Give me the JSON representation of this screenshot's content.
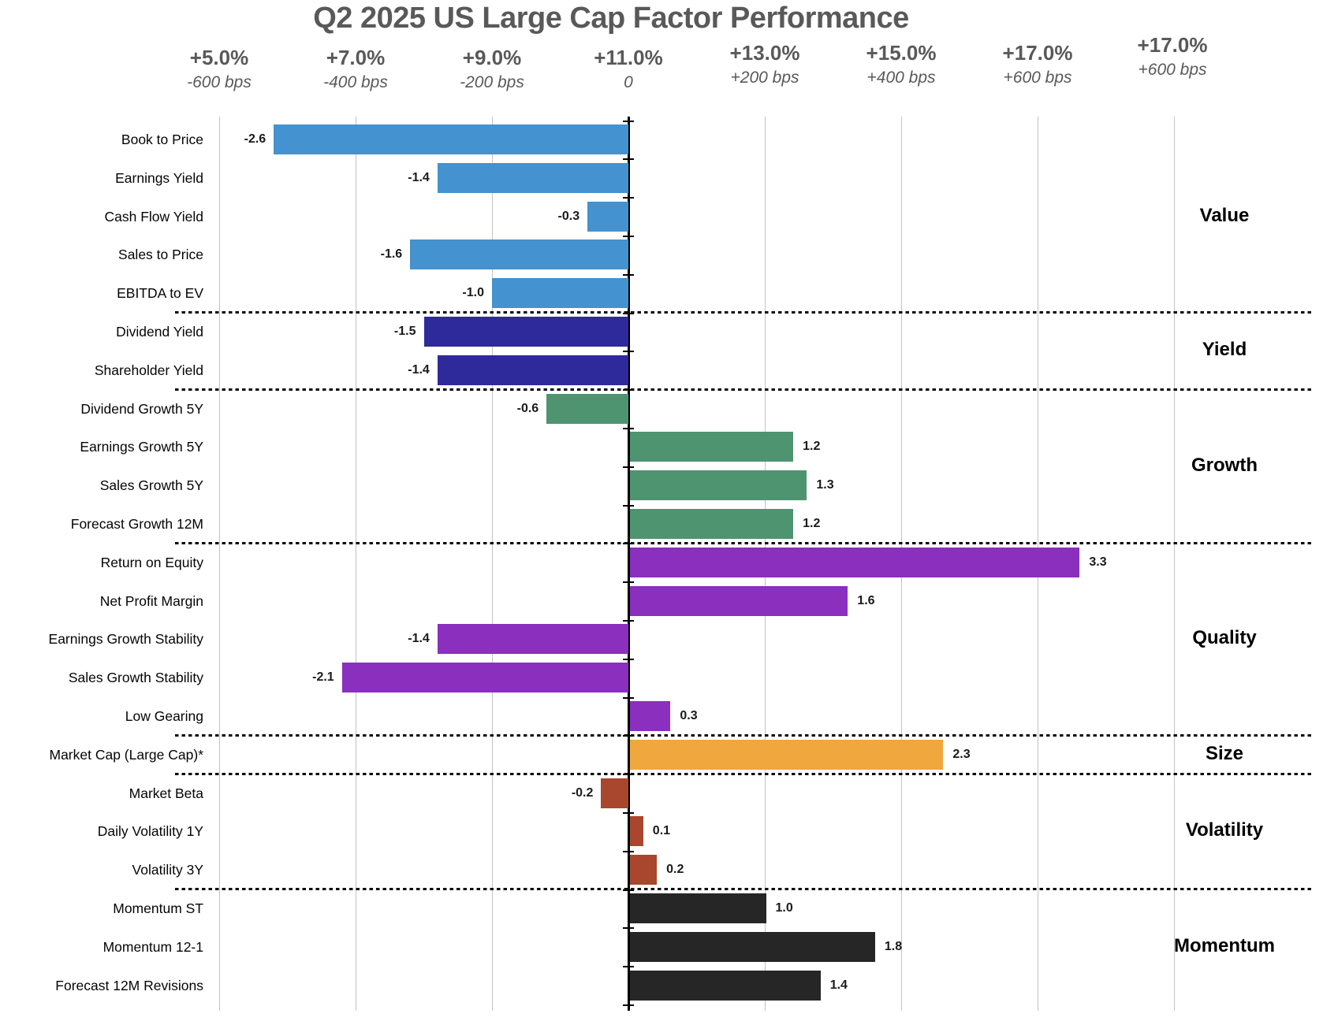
{
  "title": "Q2 2025 US Large Cap Factor Performance",
  "chart_data": {
    "type": "bar",
    "orientation": "horizontal",
    "title": "Q2 2025 US Large Cap Factor Performance",
    "top_axis_ticks": [
      {
        "pct": "+5.0%",
        "bps": "-600 bps"
      },
      {
        "pct": "+7.0%",
        "bps": "-400 bps"
      },
      {
        "pct": "+9.0%",
        "bps": "-200 bps"
      },
      {
        "pct": "+11.0%",
        "bps": "0"
      },
      {
        "pct": "+13.0%",
        "bps": "+200 bps"
      },
      {
        "pct": "+15.0%",
        "bps": "+400 bps"
      },
      {
        "pct": "+17.0%",
        "bps": "+600 bps"
      },
      {
        "pct": "+17.0%",
        "bps": "+600 bps"
      }
    ],
    "value_unit_per_gridline": 1.0,
    "axis_range_units": [
      -3,
      4
    ],
    "grid": true,
    "groups": [
      {
        "name": "Value",
        "color": "#4492cf",
        "factors": [
          {
            "label": "Book to Price",
            "value": -2.6
          },
          {
            "label": "Earnings Yield",
            "value": -1.4
          },
          {
            "label": "Cash Flow Yield",
            "value": -0.3
          },
          {
            "label": "Sales to Price",
            "value": -1.6
          },
          {
            "label": "EBITDA to EV",
            "value": -1.0
          }
        ]
      },
      {
        "name": "Yield",
        "color": "#2e2a9c",
        "factors": [
          {
            "label": "Dividend Yield",
            "value": -1.5
          },
          {
            "label": "Shareholder Yield",
            "value": -1.4
          }
        ]
      },
      {
        "name": "Growth",
        "color": "#4e9470",
        "factors": [
          {
            "label": "Dividend Growth 5Y",
            "value": -0.6
          },
          {
            "label": "Earnings Growth 5Y",
            "value": 1.2
          },
          {
            "label": "Sales Growth 5Y",
            "value": 1.3
          },
          {
            "label": "Forecast Growth 12M",
            "value": 1.2
          }
        ]
      },
      {
        "name": "Quality",
        "color": "#8a2fbe",
        "factors": [
          {
            "label": "Return on Equity",
            "value": 3.3
          },
          {
            "label": "Net Profit Margin",
            "value": 1.6
          },
          {
            "label": "Earnings Growth Stability",
            "value": -1.4
          },
          {
            "label": "Sales Growth Stability",
            "value": -2.1
          },
          {
            "label": "Low Gearing",
            "value": 0.3
          }
        ]
      },
      {
        "name": "Size",
        "color": "#f0a73e",
        "factors": [
          {
            "label": "Market Cap (Large Cap)*",
            "value": 2.3
          }
        ]
      },
      {
        "name": "Volatility",
        "color": "#a8462e",
        "factors": [
          {
            "label": "Market Beta",
            "value": -0.2
          },
          {
            "label": "Daily Volatility 1Y",
            "value": 0.1
          },
          {
            "label": "Volatility 3Y",
            "value": 0.2
          }
        ]
      },
      {
        "name": "Momentum",
        "color": "#262626",
        "factors": [
          {
            "label": "Momentum ST",
            "value": 1.0
          },
          {
            "label": "Momentum 12-1",
            "value": 1.8
          },
          {
            "label": "Forecast 12M Revisions",
            "value": 1.4
          }
        ]
      }
    ]
  }
}
